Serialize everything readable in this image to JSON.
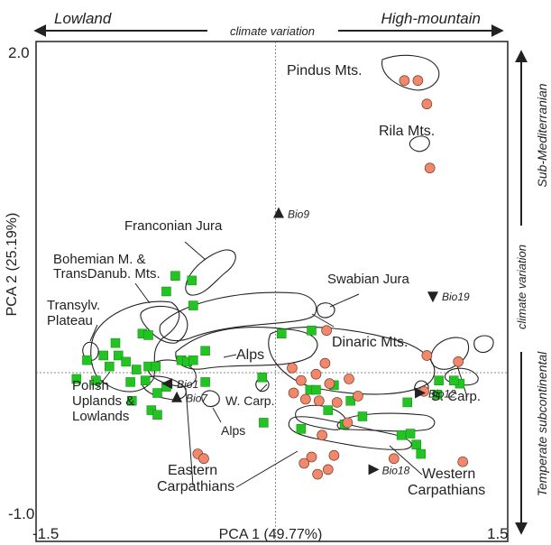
{
  "chart_data": {
    "type": "scatter",
    "title": "",
    "xlabel": "PCA 1 (49.77%)",
    "ylabel": "PCA 2 (25.19%)",
    "xlim": [
      -1.6,
      1.55
    ],
    "ylim": [
      -1.08,
      2.12
    ],
    "x_ticks": [
      "-1.5",
      "1.5"
    ],
    "y_ticks": [
      "2.0",
      "-1.0"
    ],
    "grid": false,
    "reference_lines": {
      "x": 0,
      "y": 0
    },
    "top_axis": {
      "left": "Lowland",
      "center": "climate variation",
      "right": "High-mountain"
    },
    "right_axis": {
      "top": "Sub-Mediterranian",
      "center": "climate variation",
      "bottom": "Temperate subcontinental"
    },
    "series": [
      {
        "marker": "square",
        "color": "#22c322",
        "points": [
          [
            -1.33,
            -0.04
          ],
          [
            -1.26,
            0.08
          ],
          [
            -1.2,
            -0.05
          ],
          [
            -1.15,
            0.11
          ],
          [
            -1.11,
            0.04
          ],
          [
            -1.07,
            0.19
          ],
          [
            -1.05,
            0.11
          ],
          [
            -1.0,
            0.07
          ],
          [
            -0.97,
            -0.06
          ],
          [
            -0.96,
            -0.18
          ],
          [
            -0.93,
            0.02
          ],
          [
            -0.89,
            0.25
          ],
          [
            -0.85,
            0.24
          ],
          [
            -0.85,
            0.04
          ],
          [
            -0.8,
            0.04
          ],
          [
            -0.83,
            -0.24
          ],
          [
            -0.79,
            -0.27
          ],
          [
            -0.87,
            -0.05
          ],
          [
            -0.79,
            -0.13
          ],
          [
            -0.73,
            0.52
          ],
          [
            -0.73,
            -0.09
          ],
          [
            -0.67,
            0.62
          ],
          [
            -0.56,
            0.59
          ],
          [
            -0.55,
            0.43
          ],
          [
            -0.63,
            0.08
          ],
          [
            -0.59,
            0.07
          ],
          [
            -0.55,
            0.08
          ],
          [
            -0.47,
            0.14
          ],
          [
            -0.47,
            -0.06
          ],
          [
            -0.09,
            -0.03
          ],
          [
            -0.08,
            -0.32
          ],
          [
            0.04,
            0.25
          ],
          [
            0.24,
            0.27
          ],
          [
            0.23,
            -0.11
          ],
          [
            0.27,
            -0.11
          ],
          [
            0.35,
            -0.24
          ],
          [
            0.5,
            -0.18
          ],
          [
            0.58,
            -0.28
          ],
          [
            0.84,
            -0.4
          ],
          [
            0.88,
            -0.19
          ],
          [
            0.9,
            -0.39
          ],
          [
            1.09,
            -0.05
          ],
          [
            1.23,
            -0.07
          ],
          [
            1.08,
            -0.14
          ],
          [
            0.94,
            -0.46
          ],
          [
            0.97,
            -0.52
          ],
          [
            1.19,
            -0.05
          ],
          [
            0.17,
            -0.36
          ],
          [
            0.46,
            -0.33
          ],
          [
            0.39,
            -0.08
          ]
        ]
      },
      {
        "marker": "circle",
        "color": "#f0886c",
        "points": [
          [
            0.86,
            1.87
          ],
          [
            0.95,
            1.87
          ],
          [
            1.01,
            1.72
          ],
          [
            1.03,
            1.31
          ],
          [
            0.34,
            0.27
          ],
          [
            0.11,
            0.03
          ],
          [
            0.12,
            -0.13
          ],
          [
            0.17,
            -0.05
          ],
          [
            0.2,
            -0.17
          ],
          [
            0.27,
            -0.01
          ],
          [
            0.29,
            -0.18
          ],
          [
            0.33,
            0.06
          ],
          [
            0.36,
            -0.07
          ],
          [
            0.41,
            -0.19
          ],
          [
            0.49,
            -0.04
          ],
          [
            0.55,
            -0.15
          ],
          [
            0.31,
            -0.4
          ],
          [
            0.19,
            -0.58
          ],
          [
            0.24,
            -0.54
          ],
          [
            0.35,
            -0.62
          ],
          [
            0.28,
            -0.65
          ],
          [
            0.39,
            -0.53
          ],
          [
            0.99,
            -0.12
          ],
          [
            1.01,
            0.11
          ],
          [
            1.22,
            0.07
          ],
          [
            1.25,
            -0.57
          ],
          [
            0.79,
            -0.55
          ],
          [
            -0.52,
            -0.52
          ],
          [
            -0.48,
            -0.55
          ],
          [
            0.48,
            -0.32
          ]
        ]
      }
    ],
    "vectors": [
      {
        "label": "Bio9",
        "x": 0.02,
        "y": 1.02,
        "direction": "up"
      },
      {
        "label": "Bio19",
        "x": 1.05,
        "y": 0.49,
        "direction": "down"
      },
      {
        "label": "Bio12",
        "x": 0.96,
        "y": -0.13,
        "direction": "right"
      },
      {
        "label": "Bio18",
        "x": 0.65,
        "y": -0.62,
        "direction": "right"
      },
      {
        "label": "Bio1",
        "x": -0.72,
        "y": -0.07,
        "direction": "left"
      },
      {
        "label": "Bio7",
        "x": -0.66,
        "y": -0.16,
        "direction": "up"
      }
    ],
    "annotations": [
      "Pindus Mts.",
      "Rila Mts.",
      "Franconian Jura",
      "Bohemian M. &",
      "TransDanub. Mts.",
      "Swabian Jura",
      "Transylv.",
      "Plateau",
      "Dinaric Mts.",
      "Alps",
      "W. Carp.",
      "S. Carp.",
      "Polish",
      "Uplands &",
      "Lowlands",
      "Alps",
      "Eastern",
      "Carpathians",
      "Western",
      "Carpathians"
    ]
  }
}
